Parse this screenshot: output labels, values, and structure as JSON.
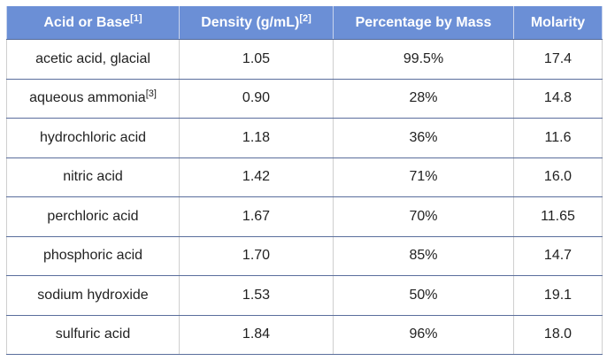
{
  "table": {
    "header": [
      {
        "text": "Acid or Base",
        "sup": "[1]"
      },
      {
        "text": "Density (g/mL)",
        "sup": "[2]"
      },
      {
        "text": "Percentage by Mass"
      },
      {
        "text": "Molarity"
      }
    ],
    "rows": [
      [
        "acetic acid, glacial",
        "1.05",
        "99.5%",
        "17.4"
      ],
      [
        {
          "text": "aqueous ammonia",
          "sup": "[3]"
        },
        "0.90",
        "28%",
        "14.8"
      ],
      [
        "hydrochloric acid",
        "1.18",
        "36%",
        "11.6"
      ],
      [
        "nitric acid",
        "1.42",
        "71%",
        "16.0"
      ],
      [
        "perchloric acid",
        "1.67",
        "70%",
        "11.65"
      ],
      [
        "phosphoric acid",
        "1.70",
        "85%",
        "14.7"
      ],
      [
        "sodium hydroxide",
        "1.53",
        "50%",
        "19.1"
      ],
      [
        "sulfuric acid",
        "1.84",
        "96%",
        "18.0"
      ]
    ]
  }
}
